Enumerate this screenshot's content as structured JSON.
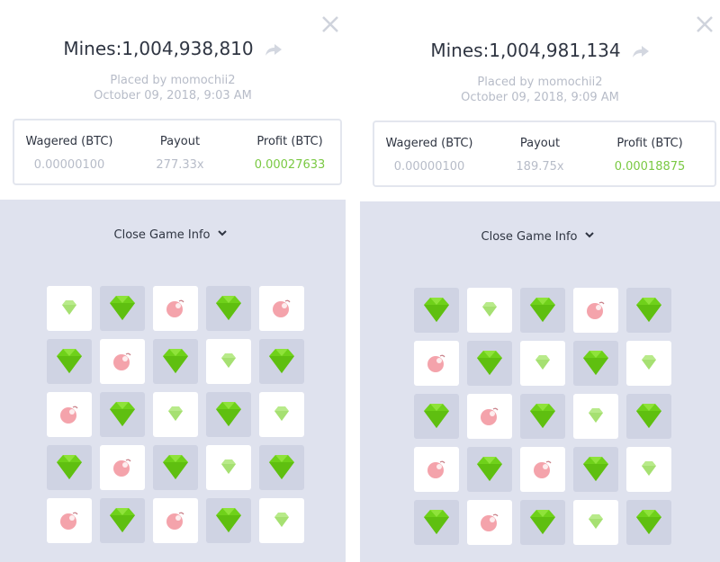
{
  "panels": [
    {
      "title": "Mines:1,004,938,810",
      "placed_by": "Placed by momochii2",
      "date": "October 09, 2018, 9:03 AM",
      "stats": {
        "headers": [
          "Wagered (BTC)",
          "Payout",
          "Profit (BTC)"
        ],
        "values": [
          "0.00000100",
          "277.33x",
          "0.00027633"
        ]
      },
      "toggle": "Close Game Info"
    },
    {
      "title": "Mines:1,004,981,134",
      "placed_by": "Placed by momochii2",
      "date": "October 09, 2018, 9:09 AM",
      "stats": {
        "headers": [
          "Wagered (BTC)",
          "Payout",
          "Profit (BTC)"
        ],
        "values": [
          "0.00000100",
          "189.75x",
          "0.00018875"
        ]
      },
      "toggle": "Close Game Info"
    }
  ]
}
